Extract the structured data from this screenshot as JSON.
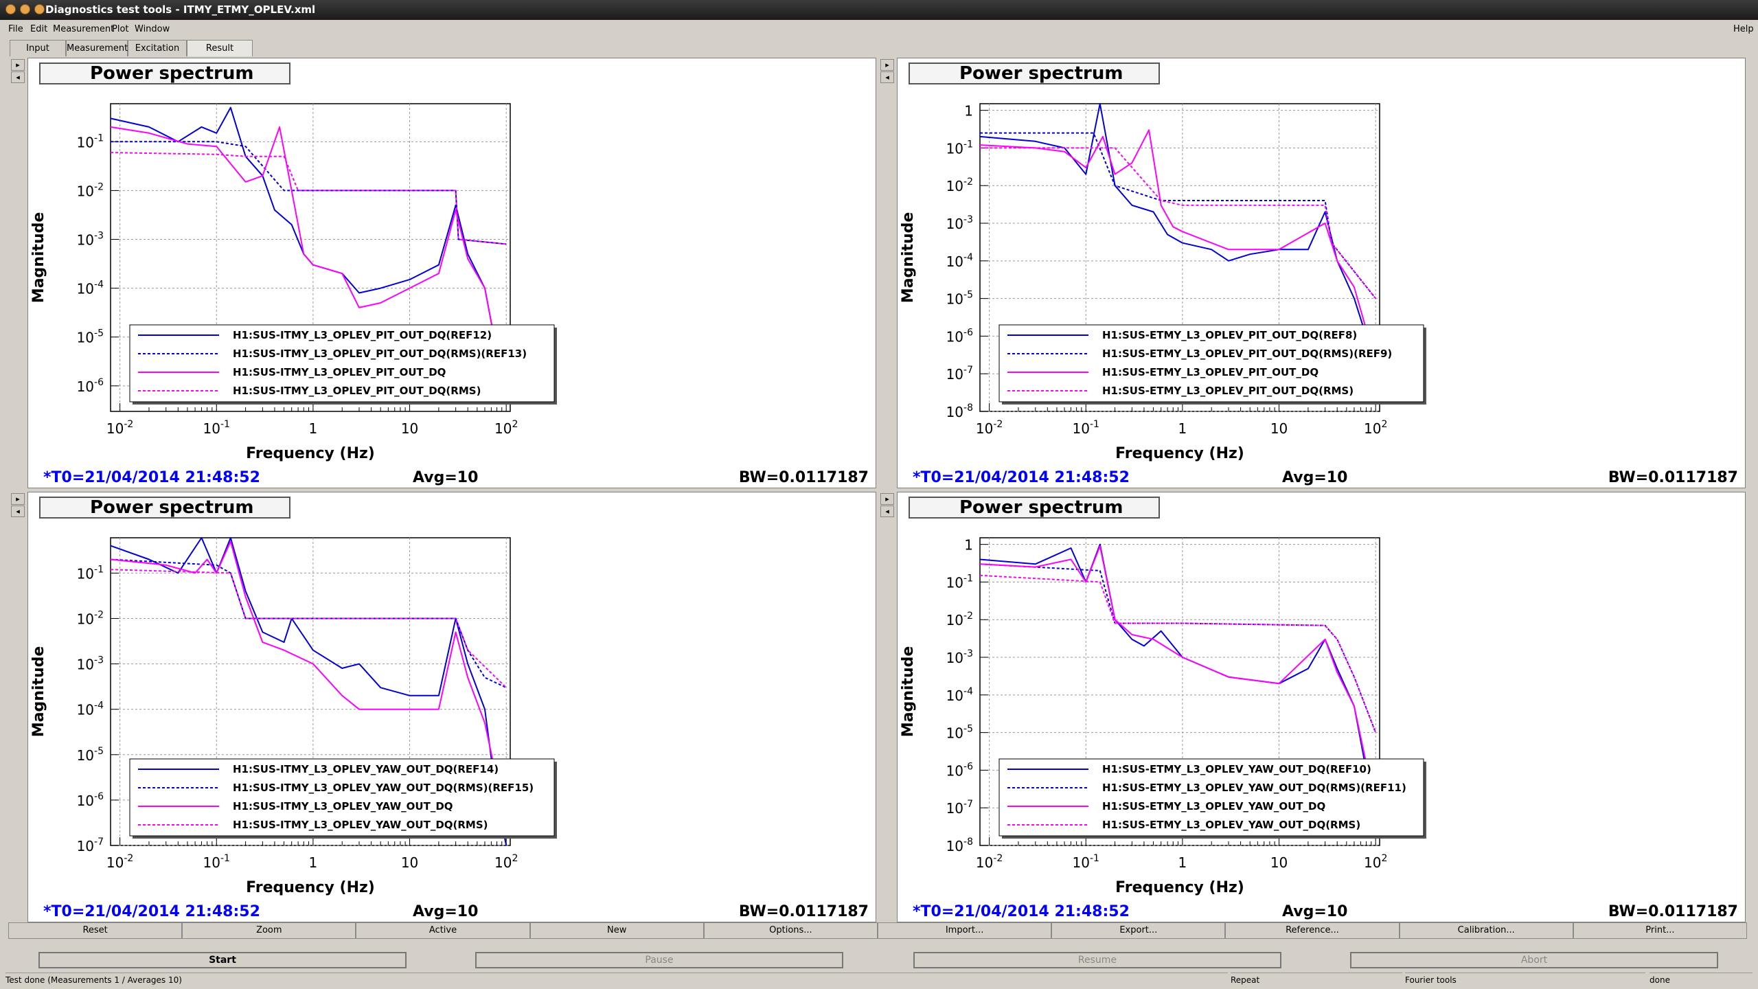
{
  "window": {
    "title": "Diagnostics test tools - ITMY_ETMY_OPLEV.xml"
  },
  "menu": [
    "File",
    "Edit",
    "Measurement",
    "Plot",
    "Window",
    "Help"
  ],
  "tabs": [
    "Input",
    "Measurement",
    "Excitation",
    "Result"
  ],
  "panels": [
    {
      "title": "Power spectrum",
      "ylabel": "Magnitude",
      "xlabel": "Frequency (Hz)",
      "yticks": [
        "10-1",
        "10-2",
        "10-3",
        "10-4",
        "10-5",
        "10-6"
      ],
      "xticks": [
        "10-2",
        "10-1",
        "1",
        "10",
        "102"
      ],
      "legend": [
        "H1:SUS-ITMY_L3_OPLEV_PIT_OUT_DQ(REF12)",
        "H1:SUS-ITMY_L3_OPLEV_PIT_OUT_DQ(RMS)(REF13)",
        "H1:SUS-ITMY_L3_OPLEV_PIT_OUT_DQ",
        "H1:SUS-ITMY_L3_OPLEV_PIT_OUT_DQ(RMS)"
      ],
      "t0": "*T0=21/04/2014 21:48:52",
      "avg": "Avg=10",
      "bw": "BW=0.0117187"
    },
    {
      "title": "Power spectrum",
      "ylabel": "Magnitude",
      "xlabel": "Frequency (Hz)",
      "yticks": [
        "1",
        "10-1",
        "10-2",
        "10-3",
        "10-4",
        "10-5",
        "10-6",
        "10-7",
        "10-8"
      ],
      "xticks": [
        "10-2",
        "10-1",
        "1",
        "10",
        "102"
      ],
      "legend": [
        "H1:SUS-ETMY_L3_OPLEV_PIT_OUT_DQ(REF8)",
        "H1:SUS-ETMY_L3_OPLEV_PIT_OUT_DQ(RMS)(REF9)",
        "H1:SUS-ETMY_L3_OPLEV_PIT_OUT_DQ",
        "H1:SUS-ETMY_L3_OPLEV_PIT_OUT_DQ(RMS)"
      ],
      "t0": "*T0=21/04/2014 21:48:52",
      "avg": "Avg=10",
      "bw": "BW=0.0117187"
    },
    {
      "title": "Power spectrum",
      "ylabel": "Magnitude",
      "xlabel": "Frequency (Hz)",
      "yticks": [
        "10-1",
        "10-2",
        "10-3",
        "10-4",
        "10-5",
        "10-6",
        "10-7"
      ],
      "xticks": [
        "10-2",
        "10-1",
        "1",
        "10",
        "102"
      ],
      "legend": [
        "H1:SUS-ITMY_L3_OPLEV_YAW_OUT_DQ(REF14)",
        "H1:SUS-ITMY_L3_OPLEV_YAW_OUT_DQ(RMS)(REF15)",
        "H1:SUS-ITMY_L3_OPLEV_YAW_OUT_DQ",
        "H1:SUS-ITMY_L3_OPLEV_YAW_OUT_DQ(RMS)"
      ],
      "t0": "*T0=21/04/2014 21:48:52",
      "avg": "Avg=10",
      "bw": "BW=0.0117187"
    },
    {
      "title": "Power spectrum",
      "ylabel": "Magnitude",
      "xlabel": "Frequency (Hz)",
      "yticks": [
        "1",
        "10-1",
        "10-2",
        "10-3",
        "10-4",
        "10-5",
        "10-6",
        "10-7",
        "10-8"
      ],
      "xticks": [
        "10-2",
        "10-1",
        "1",
        "10",
        "102"
      ],
      "legend": [
        "H1:SUS-ETMY_L3_OPLEV_YAW_OUT_DQ(REF10)",
        "H1:SUS-ETMY_L3_OPLEV_YAW_OUT_DQ(RMS)(REF11)",
        "H1:SUS-ETMY_L3_OPLEV_YAW_OUT_DQ",
        "H1:SUS-ETMY_L3_OPLEV_YAW_OUT_DQ(RMS)"
      ],
      "t0": "*T0=21/04/2014 21:48:52",
      "avg": "Avg=10",
      "bw": "BW=0.0117187"
    }
  ],
  "plot_buttons": [
    "Reset",
    "Zoom",
    "Active",
    "New",
    "Options...",
    "Import...",
    "Export...",
    "Reference...",
    "Calibration...",
    "Print..."
  ],
  "control_buttons": [
    "Start",
    "Pause",
    "Resume",
    "Abort"
  ],
  "status": {
    "message": "Test done (Measurements 1 / Averages 10)",
    "repeat": "Repeat",
    "tools": "Fourier tools",
    "state": "done"
  },
  "colors": {
    "reference": "#0000dd",
    "current": "#ff00ff",
    "timestamp": "#0000ff"
  },
  "chart_data": [
    {
      "type": "line",
      "title": "Power spectrum",
      "xlabel": "Frequency (Hz)",
      "ylabel": "Magnitude",
      "xscale": "log",
      "yscale": "log",
      "xlim": [
        0.008,
        110
      ],
      "ylim": [
        3e-07,
        0.6
      ],
      "grid": true,
      "legend_position": "bottom-left",
      "series": [
        {
          "name": "H1:SUS-ITMY_L3_OPLEV_PIT_OUT_DQ(REF12)",
          "x": [
            0.008,
            0.02,
            0.04,
            0.07,
            0.1,
            0.14,
            0.2,
            0.3,
            0.4,
            0.6,
            0.8,
            1,
            2,
            3,
            5,
            10,
            20,
            30,
            40,
            60,
            80,
            100
          ],
          "y": [
            0.3,
            0.2,
            0.1,
            0.2,
            0.15,
            0.5,
            0.05,
            0.02,
            0.004,
            0.002,
            0.0005,
            0.0003,
            0.0002,
            8e-05,
            0.0001,
            0.00015,
            0.0003,
            0.005,
            0.0005,
            0.0001,
            5e-06,
            5e-07
          ]
        },
        {
          "name": "H1:SUS-ITMY_L3_OPLEV_PIT_OUT_DQ(RMS)(REF13)",
          "x": [
            0.008,
            0.1,
            0.2,
            0.5,
            1,
            10,
            30,
            32,
            100
          ],
          "y": [
            0.1,
            0.1,
            0.08,
            0.01,
            0.01,
            0.01,
            0.01,
            0.001,
            0.0008
          ]
        },
        {
          "name": "H1:SUS-ITMY_L3_OPLEV_PIT_OUT_DQ",
          "x": [
            0.008,
            0.02,
            0.05,
            0.1,
            0.15,
            0.2,
            0.3,
            0.45,
            0.6,
            0.8,
            1,
            2,
            3,
            5,
            10,
            20,
            30,
            40,
            60,
            80,
            100
          ],
          "y": [
            0.2,
            0.15,
            0.09,
            0.08,
            0.03,
            0.015,
            0.02,
            0.2,
            0.01,
            0.0005,
            0.0003,
            0.0002,
            4e-05,
            5e-05,
            0.0001,
            0.0002,
            0.004,
            0.0004,
            0.0001,
            5e-06,
            5e-07
          ]
        },
        {
          "name": "H1:SUS-ITMY_L3_OPLEV_PIT_OUT_DQ(RMS)",
          "x": [
            0.008,
            0.1,
            0.2,
            0.5,
            0.7,
            1,
            30,
            32,
            100
          ],
          "y": [
            0.06,
            0.055,
            0.05,
            0.05,
            0.01,
            0.01,
            0.01,
            0.001,
            0.0008
          ]
        }
      ]
    },
    {
      "type": "line",
      "title": "Power spectrum",
      "xlabel": "Frequency (Hz)",
      "ylabel": "Magnitude",
      "xscale": "log",
      "yscale": "log",
      "xlim": [
        0.008,
        110
      ],
      "ylim": [
        1e-08,
        1.5
      ],
      "grid": true,
      "legend_position": "bottom-left",
      "series": [
        {
          "name": "H1:SUS-ETMY_L3_OPLEV_PIT_OUT_DQ(REF8)",
          "x": [
            0.008,
            0.03,
            0.06,
            0.1,
            0.14,
            0.2,
            0.3,
            0.5,
            0.7,
            1,
            2,
            3,
            5,
            10,
            20,
            30,
            40,
            60,
            80,
            100
          ],
          "y": [
            0.2,
            0.15,
            0.1,
            0.02,
            1.5,
            0.01,
            0.003,
            0.002,
            0.0005,
            0.0003,
            0.0002,
            0.0001,
            0.00015,
            0.0002,
            0.0002,
            0.002,
            0.0001,
            1e-05,
            1e-06,
            1e-07
          ]
        },
        {
          "name": "H1:SUS-ETMY_L3_OPLEV_PIT_OUT_DQ(RMS)(REF9)",
          "x": [
            0.008,
            0.12,
            0.2,
            0.6,
            1,
            10,
            30,
            35,
            100
          ],
          "y": [
            0.25,
            0.25,
            0.01,
            0.004,
            0.004,
            0.004,
            0.004,
            0.0003,
            1e-05
          ]
        },
        {
          "name": "H1:SUS-ETMY_L3_OPLEV_PIT_OUT_DQ",
          "x": [
            0.008,
            0.03,
            0.06,
            0.1,
            0.15,
            0.2,
            0.3,
            0.45,
            0.6,
            0.8,
            1,
            3,
            10,
            30,
            40,
            60,
            100
          ],
          "y": [
            0.12,
            0.1,
            0.08,
            0.03,
            0.2,
            0.02,
            0.04,
            0.3,
            0.003,
            0.0008,
            0.0006,
            0.0002,
            0.0002,
            0.001,
            0.0001,
            2e-05,
            2e-07
          ]
        },
        {
          "name": "H1:SUS-ETMY_L3_OPLEV_PIT_OUT_DQ(RMS)",
          "x": [
            0.008,
            0.12,
            0.2,
            0.6,
            1,
            30,
            35,
            100
          ],
          "y": [
            0.1,
            0.1,
            0.1,
            0.004,
            0.003,
            0.003,
            0.0003,
            1e-05
          ]
        }
      ]
    },
    {
      "type": "line",
      "title": "Power spectrum",
      "xlabel": "Frequency (Hz)",
      "ylabel": "Magnitude",
      "xscale": "log",
      "yscale": "log",
      "xlim": [
        0.008,
        110
      ],
      "ylim": [
        1e-07,
        0.6
      ],
      "grid": true,
      "legend_position": "bottom-left",
      "series": [
        {
          "name": "H1:SUS-ITMY_L3_OPLEV_YAW_OUT_DQ(REF14)",
          "x": [
            0.008,
            0.02,
            0.04,
            0.07,
            0.1,
            0.14,
            0.2,
            0.3,
            0.5,
            0.6,
            1,
            2,
            3,
            5,
            10,
            20,
            30,
            40,
            60,
            80,
            100
          ],
          "y": [
            0.4,
            0.2,
            0.1,
            0.6,
            0.1,
            0.6,
            0.04,
            0.005,
            0.003,
            0.01,
            0.002,
            0.0008,
            0.001,
            0.0003,
            0.0002,
            0.0002,
            0.01,
            0.001,
            0.0001,
            1e-06,
            1e-07
          ]
        },
        {
          "name": "H1:SUS-ITMY_L3_OPLEV_YAW_OUT_DQ(RMS)(REF15)",
          "x": [
            0.008,
            0.1,
            0.14,
            0.2,
            1,
            30,
            40,
            60,
            100
          ],
          "y": [
            0.2,
            0.15,
            0.1,
            0.01,
            0.01,
            0.01,
            0.002,
            0.0005,
            0.0003
          ]
        },
        {
          "name": "H1:SUS-ITMY_L3_OPLEV_YAW_OUT_DQ",
          "x": [
            0.008,
            0.03,
            0.06,
            0.08,
            0.1,
            0.14,
            0.2,
            0.3,
            0.5,
            1,
            2,
            3,
            5,
            10,
            20,
            30,
            40,
            60,
            100
          ],
          "y": [
            0.2,
            0.15,
            0.1,
            0.2,
            0.1,
            0.5,
            0.03,
            0.003,
            0.002,
            0.001,
            0.0002,
            0.0001,
            0.0001,
            0.0001,
            0.0001,
            0.005,
            0.0005,
            5e-05,
            3e-07
          ]
        },
        {
          "name": "H1:SUS-ITMY_L3_OPLEV_YAW_OUT_DQ(RMS)",
          "x": [
            0.008,
            0.14,
            0.2,
            1,
            30,
            40,
            100
          ],
          "y": [
            0.12,
            0.1,
            0.01,
            0.01,
            0.01,
            0.002,
            0.0003
          ]
        }
      ]
    },
    {
      "type": "line",
      "title": "Power spectrum",
      "xlabel": "Frequency (Hz)",
      "ylabel": "Magnitude",
      "xscale": "log",
      "yscale": "log",
      "xlim": [
        0.008,
        110
      ],
      "ylim": [
        1e-08,
        1.5
      ],
      "grid": true,
      "legend_position": "bottom-left",
      "series": [
        {
          "name": "H1:SUS-ETMY_L3_OPLEV_YAW_OUT_DQ(REF10)",
          "x": [
            0.008,
            0.03,
            0.07,
            0.1,
            0.14,
            0.2,
            0.3,
            0.4,
            0.6,
            1,
            3,
            10,
            20,
            30,
            40,
            60,
            80,
            100
          ],
          "y": [
            0.4,
            0.3,
            0.8,
            0.1,
            1,
            0.01,
            0.003,
            0.002,
            0.005,
            0.001,
            0.0003,
            0.0002,
            0.0005,
            0.003,
            0.0005,
            5e-05,
            1e-06,
            1e-07
          ]
        },
        {
          "name": "H1:SUS-ETMY_L3_OPLEV_YAW_OUT_DQ(RMS)(REF11)",
          "x": [
            0.008,
            0.14,
            0.2,
            1,
            30,
            40,
            60,
            100
          ],
          "y": [
            0.3,
            0.2,
            0.008,
            0.008,
            0.007,
            0.003,
            0.0003,
            1e-05
          ]
        },
        {
          "name": "H1:SUS-ETMY_L3_OPLEV_YAW_OUT_DQ",
          "x": [
            0.008,
            0.03,
            0.07,
            0.1,
            0.14,
            0.2,
            0.3,
            0.5,
            1,
            3,
            10,
            30,
            40,
            60,
            100
          ],
          "y": [
            0.3,
            0.25,
            0.4,
            0.1,
            0.9,
            0.01,
            0.004,
            0.003,
            0.001,
            0.0003,
            0.0002,
            0.003,
            0.0004,
            5e-05,
            1e-07
          ]
        },
        {
          "name": "H1:SUS-ETMY_L3_OPLEV_YAW_OUT_DQ(RMS)",
          "x": [
            0.008,
            0.14,
            0.2,
            1,
            30,
            40,
            60,
            100
          ],
          "y": [
            0.15,
            0.1,
            0.008,
            0.008,
            0.007,
            0.003,
            0.0003,
            1e-05
          ]
        }
      ]
    }
  ]
}
